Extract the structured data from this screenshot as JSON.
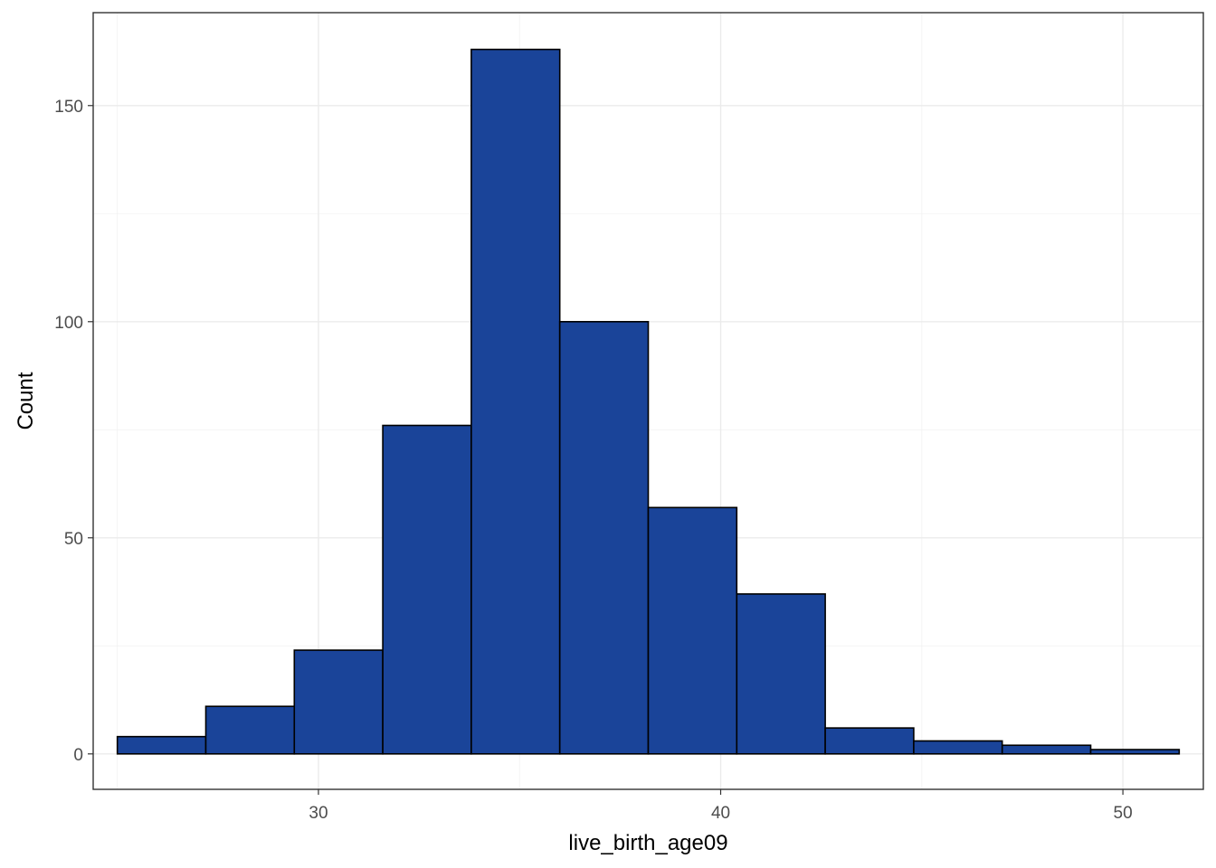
{
  "chart_data": {
    "type": "bar",
    "subtype": "histogram",
    "title": "",
    "xlabel": "live_birth_age09",
    "ylabel": "Count",
    "xlim": [
      24.4,
      52.0
    ],
    "ylim": [
      -8.2,
      171.5
    ],
    "x_ticks": [
      30,
      40,
      50
    ],
    "y_ticks": [
      0,
      50,
      100,
      150
    ],
    "x_tick_labels": [
      "30",
      "40",
      "50"
    ],
    "y_tick_labels": [
      "0",
      "50",
      "100",
      "150"
    ],
    "grid": true,
    "legend": "none",
    "bar_color": "#1a4499",
    "bar_outline": "#000000",
    "bins": [
      {
        "x0": 25.0,
        "x1": 27.2,
        "count": 4
      },
      {
        "x0": 27.2,
        "x1": 29.4,
        "count": 11
      },
      {
        "x0": 29.4,
        "x1": 31.6,
        "count": 24
      },
      {
        "x0": 31.6,
        "x1": 33.8,
        "count": 76
      },
      {
        "x0": 33.8,
        "x1": 36.0,
        "count": 163
      },
      {
        "x0": 36.0,
        "x1": 38.2,
        "count": 100
      },
      {
        "x0": 38.2,
        "x1": 40.4,
        "count": 57
      },
      {
        "x0": 40.4,
        "x1": 42.6,
        "count": 37
      },
      {
        "x0": 42.6,
        "x1": 44.8,
        "count": 6
      },
      {
        "x0": 44.8,
        "x1": 47.0,
        "count": 3
      },
      {
        "x0": 47.0,
        "x1": 49.2,
        "count": 2
      },
      {
        "x0": 49.2,
        "x1": 51.4,
        "count": 1
      }
    ]
  }
}
